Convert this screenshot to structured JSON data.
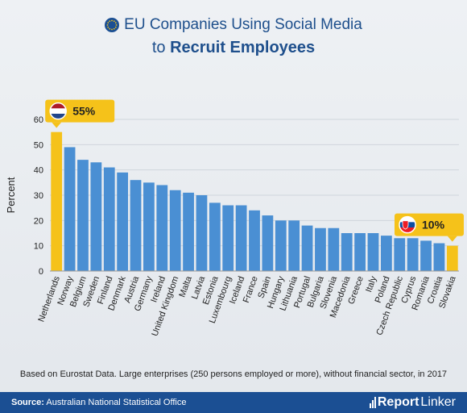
{
  "title_line1": "EU Companies Using Social Media",
  "title_line2_prefix": "to ",
  "title_line2_bold": "Recruit Employees",
  "footnote": "Based on Eurostat Data. Large enterprises (250 persons employed or more), without financial sector, in 2017",
  "footer": {
    "source_label": "Source:",
    "source_text": "Australian National Statistical Office",
    "brand_bold": "Report",
    "brand_light": "Linker"
  },
  "colors": {
    "bar": "#4a8fd3",
    "highlight": "#f5c21a",
    "title": "#1e4f8c",
    "footer": "#1b4f93"
  },
  "callouts": {
    "high": {
      "label": "55%",
      "flag": "netherlands-flag-icon"
    },
    "low": {
      "label": "10%",
      "flag": "slovakia-flag-icon"
    }
  },
  "chart_data": {
    "type": "bar",
    "ylabel": "Percent",
    "ylim": [
      0,
      60
    ],
    "yticks": [
      0,
      10,
      20,
      30,
      40,
      50,
      60
    ],
    "grid": true,
    "categories": [
      "Netherlands",
      "Norway",
      "Belgium",
      "Sweden",
      "Finland",
      "Denmark",
      "Austria",
      "Germany",
      "Ireland",
      "United Kingdom",
      "Malta",
      "Latvia",
      "Estonia",
      "Luxembourg",
      "Iceland",
      "France",
      "Spain",
      "Hungary",
      "Lithuania",
      "Portugal",
      "Bulgaria",
      "Slovenia",
      "Macedonia",
      "Greece",
      "Italy",
      "Poland",
      "Czech Republic",
      "Cyprus",
      "Romania",
      "Croatia",
      "Slovakia"
    ],
    "values": [
      55,
      49,
      44,
      43,
      41,
      39,
      36,
      35,
      34,
      32,
      31,
      30,
      27,
      26,
      26,
      24,
      22,
      20,
      20,
      18,
      17,
      17,
      15,
      15,
      15,
      14,
      13,
      13,
      12,
      11,
      10
    ],
    "highlighted": [
      "Netherlands",
      "Slovakia"
    ]
  }
}
